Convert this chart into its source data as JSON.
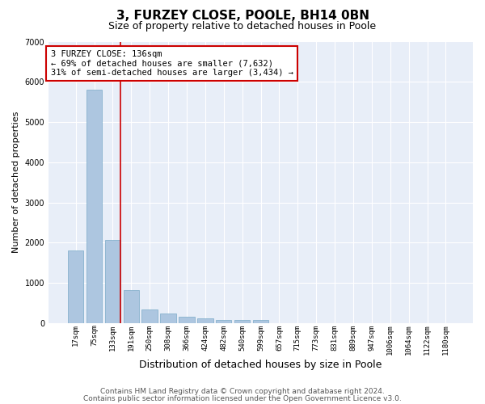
{
  "title1": "3, FURZEY CLOSE, POOLE, BH14 0BN",
  "title2": "Size of property relative to detached houses in Poole",
  "xlabel": "Distribution of detached houses by size in Poole",
  "ylabel": "Number of detached properties",
  "categories": [
    "17sqm",
    "75sqm",
    "133sqm",
    "191sqm",
    "250sqm",
    "308sqm",
    "366sqm",
    "424sqm",
    "482sqm",
    "540sqm",
    "599sqm",
    "657sqm",
    "715sqm",
    "773sqm",
    "831sqm",
    "889sqm",
    "947sqm",
    "1006sqm",
    "1064sqm",
    "1122sqm",
    "1180sqm"
  ],
  "values": [
    1800,
    5800,
    2060,
    830,
    340,
    230,
    150,
    110,
    80,
    70,
    70,
    0,
    0,
    0,
    0,
    0,
    0,
    0,
    0,
    0,
    0
  ],
  "bar_color": "#adc6e0",
  "bar_edge_color": "#7aaac8",
  "property_line_color": "#cc0000",
  "annotation_text": "3 FURZEY CLOSE: 136sqm\n← 69% of detached houses are smaller (7,632)\n31% of semi-detached houses are larger (3,434) →",
  "annotation_box_color": "white",
  "annotation_box_edge": "#cc0000",
  "ylim": [
    0,
    7000
  ],
  "yticks": [
    0,
    1000,
    2000,
    3000,
    4000,
    5000,
    6000,
    7000
  ],
  "background_color": "#e8eef8",
  "grid_color": "white",
  "footer1": "Contains HM Land Registry data © Crown copyright and database right 2024.",
  "footer2": "Contains public sector information licensed under the Open Government Licence v3.0.",
  "title1_fontsize": 11,
  "title2_fontsize": 9,
  "annotation_fontsize": 7.5,
  "tick_fontsize": 6.5,
  "ylabel_fontsize": 8,
  "xlabel_fontsize": 9,
  "footer_fontsize": 6.5
}
